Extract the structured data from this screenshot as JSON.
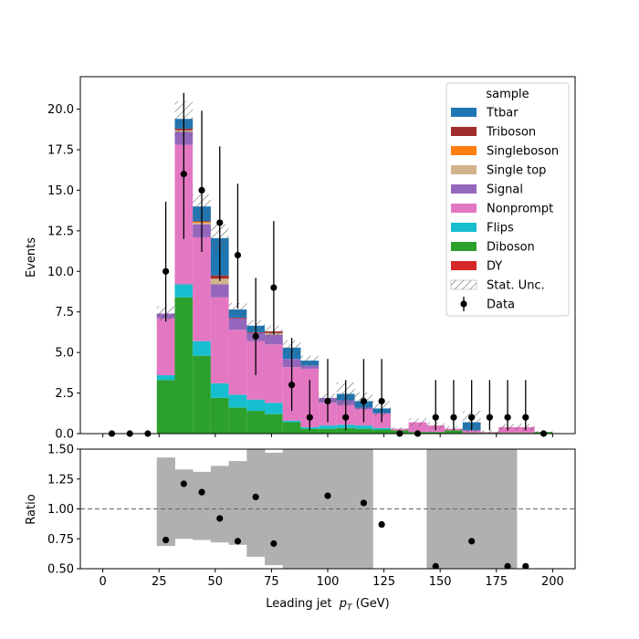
{
  "colors": {
    "Ttbar": "#1f77b4",
    "Triboson": "#a12c2c",
    "Singleboson": "#ff7f0e",
    "Single top": "#d2b48c",
    "Signal": "#9467bd",
    "Nonprompt": "#e377c2",
    "Flips": "#17becf",
    "Diboson": "#2ca02c",
    "DY": "#d62728",
    "band": "#b0b0b0",
    "data": "#000000"
  },
  "chart_data": [
    {
      "type": "bar",
      "subtype": "stacked-histogram",
      "xlabel": "Leading jet  p_T (GeV)",
      "xlabel_parts": {
        "prefix": "Leading jet  ",
        "p": "p",
        "sub": "T",
        "suffix": " (GeV)"
      },
      "ylabel": "Events",
      "xlim": [
        -10,
        210
      ],
      "ylim": [
        0,
        22
      ],
      "xticks": [
        "0",
        "25",
        "50",
        "75",
        "100",
        "125",
        "150",
        "175",
        "200"
      ],
      "yticks": [
        "0.0",
        "2.5",
        "5.0",
        "7.5",
        "10.0",
        "12.5",
        "15.0",
        "17.5",
        "20.0"
      ],
      "bin_edges": [
        0,
        8,
        16,
        24,
        32,
        40,
        48,
        56,
        64,
        72,
        80,
        88,
        96,
        104,
        112,
        120,
        128,
        136,
        144,
        152,
        160,
        168,
        176,
        184,
        192,
        200
      ],
      "legend": {
        "title": "sample",
        "location": "upper right",
        "entries": [
          "Ttbar",
          "Triboson",
          "Singleboson",
          "Single top",
          "Signal",
          "Nonprompt",
          "Flips",
          "Diboson",
          "DY",
          "Stat. Unc.",
          "Data"
        ]
      },
      "stack_order": [
        "DY",
        "Diboson",
        "Flips",
        "Nonprompt",
        "Signal",
        "Single top",
        "Singleboson",
        "Triboson",
        "Ttbar"
      ],
      "series": [
        {
          "name": "DY",
          "values": [
            0,
            0,
            0,
            0,
            0,
            0,
            0,
            0,
            0,
            0,
            0,
            0,
            0,
            0,
            0,
            0,
            0,
            0,
            0,
            0,
            0,
            0,
            0,
            0,
            0
          ]
        },
        {
          "name": "Diboson",
          "values": [
            0,
            0,
            0,
            3.3,
            8.4,
            4.8,
            2.2,
            1.6,
            1.4,
            1.2,
            0.7,
            0.3,
            0.3,
            0.35,
            0.3,
            0.25,
            0.2,
            0.1,
            0.1,
            0.2,
            0.05,
            0.05,
            0.05,
            0.05,
            0.1
          ]
        },
        {
          "name": "Flips",
          "values": [
            0,
            0,
            0,
            0.3,
            0.8,
            0.9,
            0.9,
            0.8,
            0.7,
            0.7,
            0.1,
            0.1,
            0.2,
            0.2,
            0.2,
            0.1,
            0,
            0,
            0,
            0,
            0,
            0,
            0,
            0,
            0
          ]
        },
        {
          "name": "Nonprompt",
          "values": [
            0,
            0,
            0,
            3.5,
            8.6,
            6.4,
            5.3,
            4.0,
            3.6,
            3.6,
            3.3,
            3.6,
            1.4,
            1.2,
            1.0,
            0.9,
            0.1,
            0.6,
            0.4,
            0.1,
            0.15,
            0.05,
            0.35,
            0.35,
            0
          ]
        },
        {
          "name": "Signal",
          "values": [
            0,
            0,
            0,
            0.3,
            0.8,
            0.8,
            0.8,
            0.7,
            0.5,
            0.6,
            0.5,
            0.2,
            0.3,
            0.3,
            0.1,
            0,
            0,
            0,
            0,
            0,
            0,
            0,
            0,
            0,
            0
          ]
        },
        {
          "name": "Single top",
          "values": [
            0,
            0,
            0,
            0,
            0.1,
            0.1,
            0.35,
            0,
            0,
            0.1,
            0,
            0,
            0,
            0,
            0,
            0,
            0,
            0,
            0,
            0,
            0,
            0,
            0,
            0,
            0
          ]
        },
        {
          "name": "Singleboson",
          "values": [
            0,
            0,
            0,
            0,
            0,
            0.05,
            0,
            0,
            0,
            0,
            0,
            0,
            0,
            0,
            0,
            0,
            0,
            0,
            0,
            0,
            0,
            0,
            0,
            0,
            0
          ]
        },
        {
          "name": "Triboson",
          "values": [
            0,
            0,
            0,
            0,
            0.1,
            0.05,
            0.2,
            0.05,
            0.05,
            0.1,
            0,
            0,
            0,
            0,
            0,
            0,
            0,
            0,
            0,
            0,
            0,
            0,
            0,
            0,
            0
          ]
        },
        {
          "name": "Ttbar",
          "values": [
            0,
            0,
            0,
            0,
            0.6,
            0.9,
            2.3,
            0.5,
            0.4,
            0,
            0.7,
            0.3,
            0,
            0.4,
            0.4,
            0.3,
            0,
            0,
            0,
            0,
            0.5,
            0,
            0,
            0,
            0
          ]
        }
      ],
      "stat_unc": [
        0,
        0,
        0,
        0.45,
        1.1,
        0.75,
        0.85,
        0.4,
        0.35,
        0.35,
        0.45,
        0.3,
        0.25,
        0.7,
        0.55,
        0.45,
        0.1,
        0.25,
        0.2,
        0.15,
        0.7,
        0.1,
        0.2,
        0.2,
        0.05
      ],
      "data": {
        "x": [
          4,
          12,
          20,
          28,
          36,
          44,
          52,
          60,
          68,
          76,
          84,
          92,
          100,
          108,
          116,
          124,
          132,
          140,
          148,
          156,
          164,
          172,
          180,
          188,
          196
        ],
        "y": [
          0,
          0,
          0,
          10,
          16,
          15,
          13,
          11,
          6,
          9,
          3,
          1,
          2,
          1,
          2,
          2,
          0,
          0,
          1,
          1,
          1,
          1,
          1,
          1,
          0
        ],
        "yerr_up": [
          0,
          0,
          0,
          4.3,
          5.0,
          4.9,
          4.7,
          4.4,
          3.6,
          4.1,
          2.9,
          2.3,
          2.6,
          2.3,
          2.6,
          2.6,
          0,
          0,
          2.3,
          2.3,
          2.3,
          2.3,
          2.3,
          2.3,
          0
        ],
        "yerr_down": [
          0,
          0,
          0,
          3.1,
          4.0,
          3.8,
          3.6,
          3.3,
          2.4,
          2.9,
          1.6,
          0.8,
          1.3,
          0.8,
          1.3,
          1.3,
          0,
          0,
          0.8,
          0.8,
          0.8,
          0.8,
          0.8,
          0.8,
          0
        ]
      }
    },
    {
      "type": "scatter",
      "subtype": "ratio",
      "xlabel": "Leading jet  p_T (GeV)",
      "ylabel": "Ratio",
      "xlim": [
        -10,
        210
      ],
      "ylim": [
        0.5,
        1.5
      ],
      "xticks": [
        "0",
        "25",
        "50",
        "75",
        "100",
        "125",
        "150",
        "175",
        "200"
      ],
      "yticks": [
        "0.50",
        "0.75",
        "1.00",
        "1.25",
        "1.50"
      ],
      "reference_line": 1.0,
      "band": {
        "bin_edges": [
          24,
          32,
          40,
          48,
          56,
          64,
          72,
          80,
          88,
          96,
          104,
          112,
          120,
          144,
          152,
          160,
          168,
          176,
          184
        ],
        "low": [
          0.69,
          0.75,
          0.74,
          0.72,
          0.7,
          0.6,
          0.53,
          0.3,
          0.3,
          0.3,
          0.3,
          0.3,
          null,
          0.3,
          0.3,
          0.3,
          0.3,
          0.3
        ],
        "high": [
          1.43,
          1.33,
          1.31,
          1.36,
          1.4,
          1.6,
          1.47,
          1.7,
          1.7,
          1.7,
          1.7,
          1.7,
          null,
          1.7,
          1.7,
          1.7,
          1.7,
          1.7
        ]
      },
      "points": {
        "x": [
          28,
          36,
          44,
          52,
          60,
          68,
          76,
          100,
          116,
          124,
          148,
          164,
          180,
          188
        ],
        "y": [
          0.74,
          1.21,
          1.14,
          0.92,
          0.73,
          1.1,
          0.71,
          1.11,
          1.05,
          0.87,
          0.52,
          0.73,
          0.52,
          0.52
        ]
      }
    }
  ]
}
